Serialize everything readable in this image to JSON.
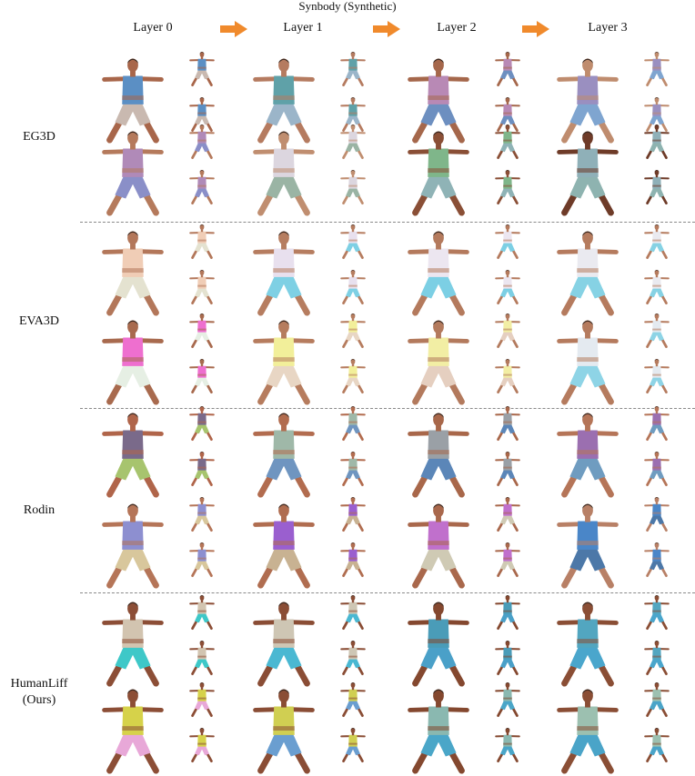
{
  "figure": {
    "title": "Synbody (Synthetic)",
    "columns": [
      {
        "label": "Layer 0"
      },
      {
        "label": "Layer 1"
      },
      {
        "label": "Layer 2"
      },
      {
        "label": "Layer 3"
      }
    ],
    "arrow_icon": "orange-right-arrow-icon",
    "arrow_color": "#f08a2c",
    "methods": [
      {
        "label": "EG3D"
      },
      {
        "label": "EVA3D"
      },
      {
        "label": "Rodin"
      },
      {
        "label_line1": "HumanLiff",
        "label_line2": "(Ours)"
      }
    ],
    "figure_icon": "t-pose-human-render-icon"
  }
}
